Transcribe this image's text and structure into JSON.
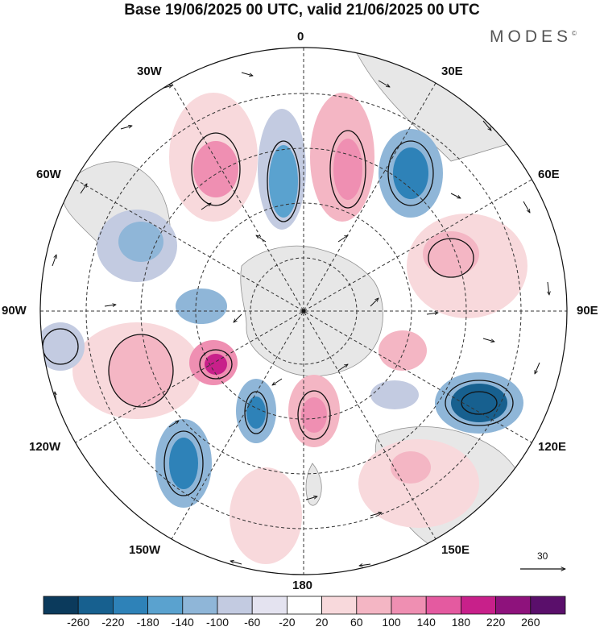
{
  "title": "Base 19/06/2025 00 UTC, valid 21/06/2025 00 UTC",
  "logo": "MODES",
  "logo_mark": "©",
  "longitude_labels": {
    "top": "0",
    "top_right": "30E",
    "right_upper": "60E",
    "right": "90E",
    "right_lower": "120E",
    "bottom_right": "150E",
    "bottom": "180",
    "bottom_left": "150W",
    "left_lower": "120W",
    "left": "90W",
    "left_upper": "60W",
    "top_left": "30W"
  },
  "reference_vector": "30",
  "colorbar": {
    "labels": [
      "-260",
      "-220",
      "-180",
      "-140",
      "-100",
      "-60",
      "-20",
      "20",
      "60",
      "100",
      "140",
      "180",
      "220",
      "260"
    ],
    "colors": [
      "#0b3a5c",
      "#17608f",
      "#2e82b8",
      "#5aa2cf",
      "#8fb6d8",
      "#c3cbe1",
      "#e4e3f0",
      "#ffffff",
      "#f8d9dc",
      "#f4b6c4",
      "#ef8fb2",
      "#e45aa0",
      "#c8208a",
      "#8e127c",
      "#5a0f6b"
    ]
  },
  "map_colors": {
    "land": "#e8e8e8",
    "coast": "#8a8a8a",
    "grid": "#333333"
  }
}
